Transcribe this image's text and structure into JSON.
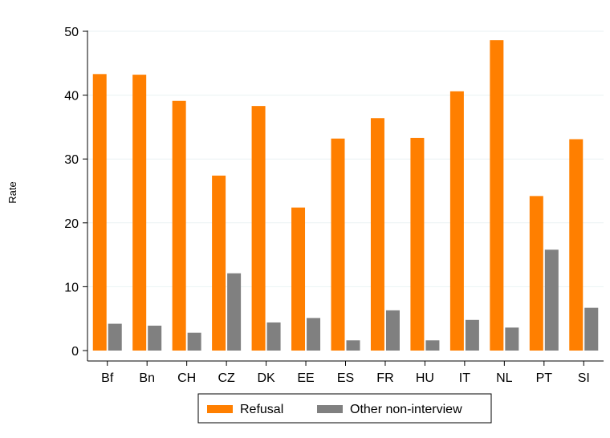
{
  "chart_data": {
    "type": "bar",
    "ylabel": "Rate",
    "ylim": [
      0,
      50
    ],
    "yticks": [
      0,
      10,
      20,
      30,
      40,
      50
    ],
    "grid": true,
    "legend_position": "bottom",
    "categories": [
      "Bf",
      "Bn",
      "CH",
      "CZ",
      "DK",
      "EE",
      "ES",
      "FR",
      "HU",
      "IT",
      "NL",
      "PT",
      "SI"
    ],
    "series": [
      {
        "name": "Refusal",
        "color": "#ff7f00",
        "values": [
          43.3,
          43.2,
          39.1,
          27.4,
          38.3,
          22.4,
          33.2,
          36.4,
          33.3,
          40.6,
          48.6,
          24.2,
          33.1
        ]
      },
      {
        "name": "Other non-interview",
        "color": "#808080",
        "values": [
          4.2,
          3.9,
          2.8,
          12.1,
          4.4,
          5.1,
          1.6,
          6.3,
          1.6,
          4.8,
          3.6,
          15.8,
          6.7
        ]
      }
    ]
  }
}
